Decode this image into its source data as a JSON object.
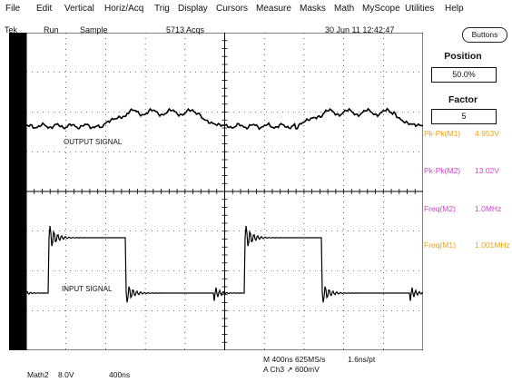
{
  "menu": [
    "File",
    "Edit",
    "Vertical",
    "Horiz/Acq",
    "Trig",
    "Display",
    "Cursors",
    "Measure",
    "Masks",
    "Math",
    "MyScope",
    "Utilities",
    "Help"
  ],
  "status": {
    "brand": "Tek",
    "run": "Run",
    "mode": "Sample",
    "acqs": "5713 Acqs",
    "datetime": "30 Jun 11 12:42:47"
  },
  "buttons_label": "Buttons",
  "position": {
    "label": "Position",
    "value": "50.0%"
  },
  "factor": {
    "label": "Factor",
    "value": "5"
  },
  "measurements": [
    {
      "name": "Pk-Pk(M1)",
      "value": "4.953V",
      "color": "#e8a317"
    },
    {
      "name": "Pk-Pk(M2)",
      "value": "13.02V",
      "color": "#cc44cc"
    },
    {
      "name": "Freq(M2)",
      "value": "1.0MHz",
      "color": "#cc44cc"
    },
    {
      "name": "Freq(M1)",
      "value": "1.001MHz",
      "color": "#e8a317"
    }
  ],
  "signals": {
    "output": "OUTPUT SIGNAL",
    "input": "INPUT SIGNAL"
  },
  "acq_info": {
    "line1": "M 400ns 625MS/s",
    "line1b": "1.6ns/pt",
    "line2": "A Ch3 ↗ 600mV"
  },
  "math_info": {
    "label": "Math2",
    "scale": "8.0V",
    "time": "400ns"
  },
  "colors": {
    "trace": "#000000",
    "grid": "#000000"
  }
}
